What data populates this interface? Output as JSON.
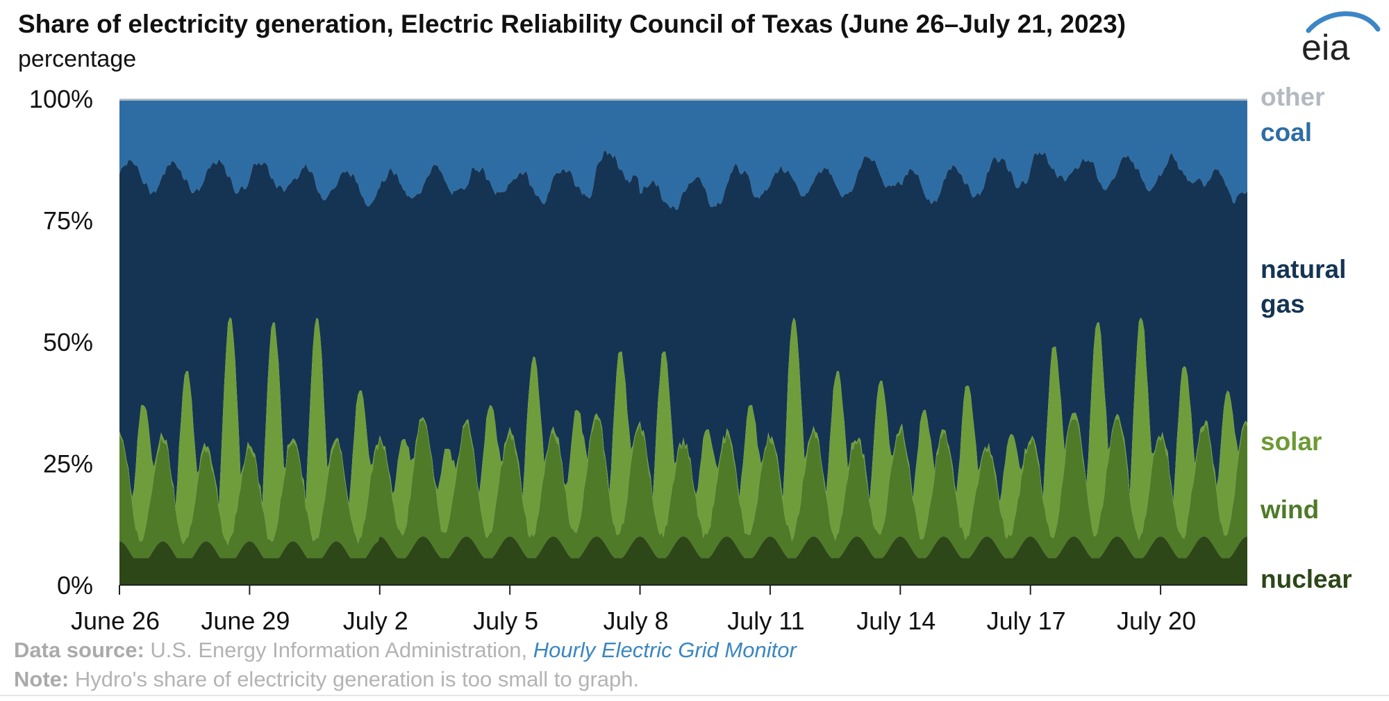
{
  "chart_data": {
    "type": "area",
    "stacked": true,
    "percent": true,
    "title": "Share of electricity generation, Electric Reliability Council of Texas (June 26–July 21, 2023)",
    "ylabel": "percentage",
    "ylim": [
      0,
      100
    ],
    "y_ticks": [
      "100%",
      "75%",
      "50%",
      "25%",
      "0%"
    ],
    "x_ticks": [
      "June 26",
      "June 29",
      "July 2",
      "July 5",
      "July 8",
      "July 11",
      "July 14",
      "July 17",
      "July 20"
    ],
    "x_range_days": [
      0,
      26
    ],
    "resolution": "hourly",
    "series": [
      {
        "name": "nuclear",
        "color": "#2d4719"
      },
      {
        "name": "wind",
        "color": "#4f7a28"
      },
      {
        "name": "solar",
        "color": "#6f9d3c"
      },
      {
        "name": "natural gas",
        "color": "#153453"
      },
      {
        "name": "coal",
        "color": "#2e6da4"
      },
      {
        "name": "other",
        "color": "#b7bdc3"
      }
    ],
    "daily_peak_values": {
      "nuclear_cumulative": [
        9,
        9,
        9,
        9,
        9,
        9,
        10,
        10,
        10,
        10,
        10,
        10,
        10,
        10,
        10,
        10,
        10,
        10,
        10,
        10,
        10,
        10,
        10,
        10,
        10,
        10
      ],
      "wind_cumulative_range": [
        10,
        34
      ],
      "solar_cumulative_peak": [
        37,
        44,
        55,
        54,
        55,
        40,
        30,
        28,
        37,
        47,
        36,
        48,
        48,
        32,
        37,
        55,
        44,
        42,
        36,
        41,
        31,
        49,
        54,
        55,
        45,
        40
      ],
      "gas_cumulative_peak": [
        87,
        87,
        87,
        87,
        86,
        85,
        85,
        86,
        86,
        85,
        86,
        89,
        83,
        84,
        86,
        86,
        86,
        88,
        85,
        86,
        88,
        89,
        88,
        88,
        88,
        85
      ]
    }
  },
  "legend": {
    "other": "other",
    "coal": "coal",
    "natural_gas_1": "natural",
    "natural_gas_2": "gas",
    "solar": "solar",
    "wind": "wind",
    "nuclear": "nuclear"
  },
  "logo_text": "eia",
  "footer": {
    "source_label": "Data source:",
    "source_text": "U.S. Energy Information Administration,",
    "source_link": "Hourly Electric Grid Monitor",
    "note_label": "Note:",
    "note_text": "Hydro's share of electricity generation is too small to graph."
  },
  "colors": {
    "other": "#b7bdc3",
    "coal": "#2e6da4",
    "natural_gas": "#153453",
    "solar": "#6f9d3c",
    "wind": "#4f7a28",
    "nuclear": "#2d4719",
    "legend_other": "#b4b9bf",
    "legend_coal": "#2e6da4",
    "legend_gas": "#153453",
    "legend_solar": "#6c9a35",
    "legend_wind": "#4f7a28",
    "legend_nuclear": "#2d4719"
  }
}
